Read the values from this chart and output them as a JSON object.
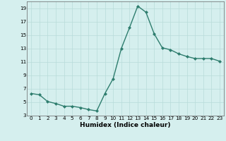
{
  "x": [
    0,
    1,
    2,
    3,
    4,
    5,
    6,
    7,
    8,
    9,
    10,
    11,
    12,
    13,
    14,
    15,
    16,
    17,
    18,
    19,
    20,
    21,
    22,
    23
  ],
  "y": [
    6.3,
    6.1,
    5.1,
    4.8,
    4.4,
    4.4,
    4.2,
    3.9,
    3.7,
    6.3,
    8.5,
    13.0,
    16.1,
    19.3,
    18.4,
    15.2,
    13.1,
    12.8,
    12.2,
    11.8,
    11.5,
    11.5,
    11.5,
    11.1
  ],
  "line_color": "#2e7d6e",
  "marker": "D",
  "marker_size": 2.0,
  "xlabel": "Humidex (Indice chaleur)",
  "xlim": [
    -0.5,
    23.5
  ],
  "ylim": [
    3,
    20
  ],
  "yticks": [
    3,
    5,
    7,
    9,
    11,
    13,
    15,
    17,
    19
  ],
  "xticks": [
    0,
    1,
    2,
    3,
    4,
    5,
    6,
    7,
    8,
    9,
    10,
    11,
    12,
    13,
    14,
    15,
    16,
    17,
    18,
    19,
    20,
    21,
    22,
    23
  ],
  "background_color": "#d5efee",
  "grid_color": "#b8dbd9",
  "line_width": 1.0,
  "tick_fontsize": 5.2,
  "xlabel_fontsize": 6.5
}
